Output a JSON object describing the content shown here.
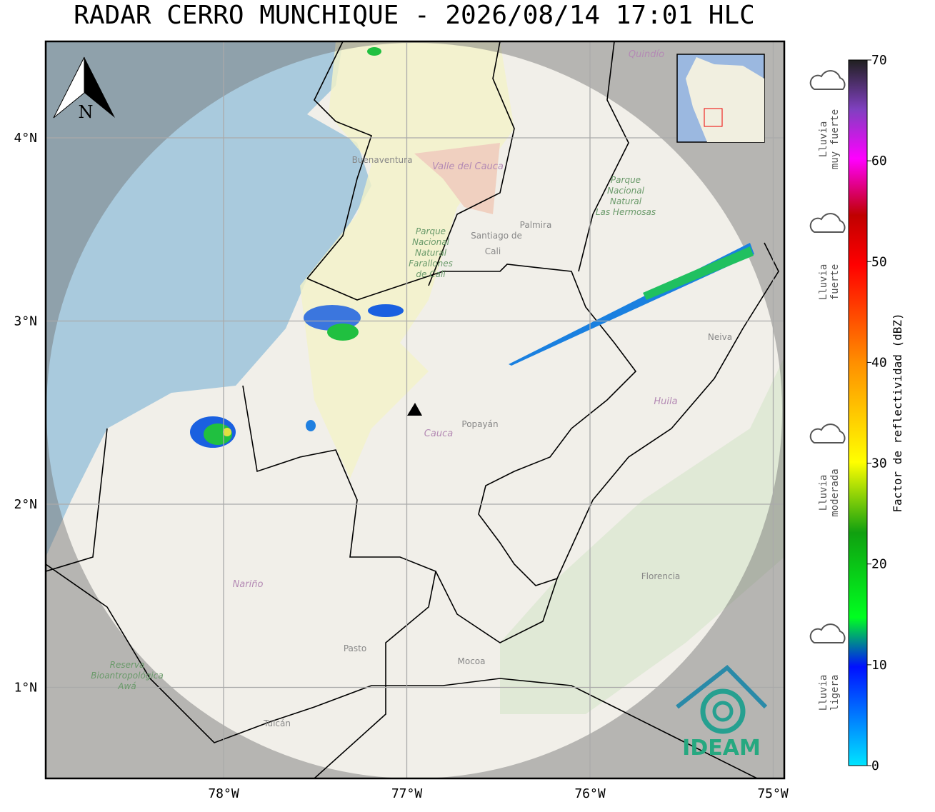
{
  "title": "RADAR CERRO MUNCHIQUE - 2026/08/14 17:01 HLC",
  "north": "N",
  "lon_ticks": [
    {
      "value": -78,
      "label": "78°W"
    },
    {
      "value": -77,
      "label": "77°W"
    },
    {
      "value": -76,
      "label": "76°W"
    },
    {
      "value": -75,
      "label": "75°W"
    }
  ],
  "lat_ticks": [
    {
      "value": 4,
      "label": "4°N"
    },
    {
      "value": 3,
      "label": "3°N"
    },
    {
      "value": 2,
      "label": "2°N"
    },
    {
      "value": 1,
      "label": "1°N"
    }
  ],
  "places": [
    "Buenaventura",
    "Valle del Cauca",
    "Santiago de",
    "Cali",
    "Palmira",
    "Quindío",
    "Cauca",
    "Popayán",
    "Huila",
    "Neiva",
    "Nariño",
    "Pasto",
    "Mocoa",
    "Florencia",
    "Tulcán"
  ],
  "parks": [
    [
      "Parque",
      "Nacional",
      "Natural",
      "Farallones",
      "de Cali"
    ],
    [
      "Parque",
      "Nacional",
      "Natural",
      "Las Hermosas"
    ],
    [
      "Reserva",
      "Bioantropológica",
      "Awá"
    ]
  ],
  "logo": "IDEAM",
  "colorbar": {
    "label": "Factor de reflectividad (dBZ)",
    "lim": [
      0,
      70
    ],
    "ticks": [
      0,
      10,
      20,
      30,
      40,
      50,
      60,
      70
    ]
  },
  "categories": [
    [
      "Lluvia",
      "muy fuerte"
    ],
    [
      "Lluvia",
      "fuerte"
    ],
    [
      "Lluvia",
      "moderada"
    ],
    [
      "Lluvia",
      "ligera"
    ]
  ]
}
